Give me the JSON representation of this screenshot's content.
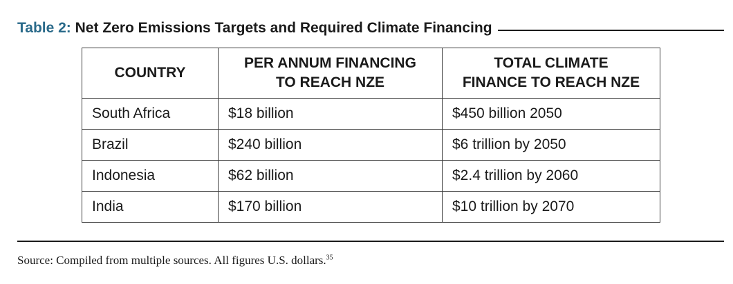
{
  "title": {
    "label": "Table 2:",
    "text": "Net Zero Emissions Targets and Required Climate Financing"
  },
  "table": {
    "headers": [
      [
        "COUNTRY"
      ],
      [
        "PER ANNUM FINANCING",
        "TO REACH NZE"
      ],
      [
        "TOTAL CLIMATE",
        "FINANCE TO REACH NZE"
      ]
    ],
    "rows": [
      [
        "South Africa",
        "$18 billion",
        "$450 billion 2050"
      ],
      [
        "Brazil",
        "$240 billion",
        "$6 trillion by 2050"
      ],
      [
        "Indonesia",
        "$62 billion",
        "$2.4 trillion by 2060"
      ],
      [
        "India",
        "$170 billion",
        "$10 trillion by 2070"
      ]
    ]
  },
  "source": {
    "text": "Source: Compiled from multiple sources. All figures U.S. dollars.",
    "footnote": "35"
  },
  "colors": {
    "title_label": "#2a6a8a",
    "text": "#1a1a1a",
    "border": "#3a3a3a"
  }
}
